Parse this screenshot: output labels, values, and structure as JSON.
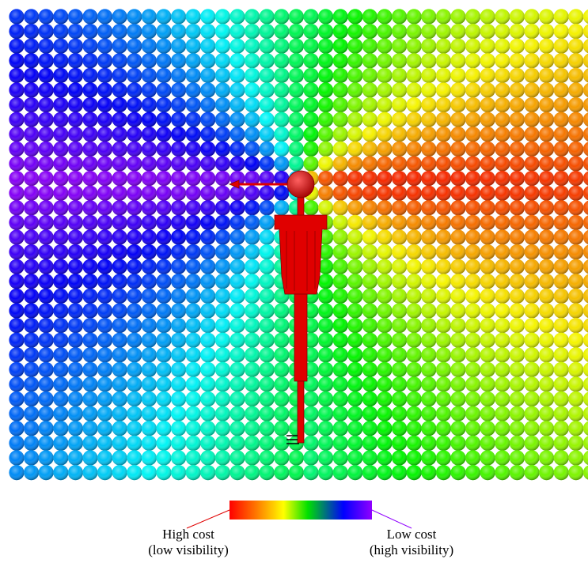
{
  "legend": {
    "high": {
      "label": "High cost",
      "note": "(low visibility)"
    },
    "low": {
      "label": "Low cost",
      "note": "(high visibility)"
    }
  }
}
